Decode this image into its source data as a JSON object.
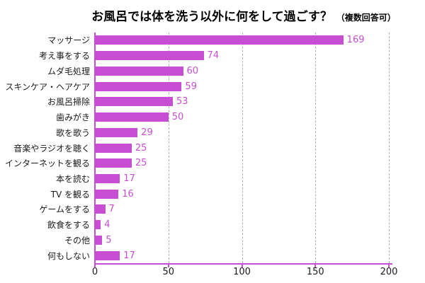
{
  "title": {
    "main": "お風呂では体を洗う以外に何をして過ごす？",
    "note": "（複数回答可）"
  },
  "chart_data": {
    "type": "bar",
    "orientation": "horizontal",
    "title": "お風呂では体を洗う以外に何をして過ごす？（複数回答可）",
    "categories": [
      "マッサージ",
      "考え事をする",
      "ムダ毛処理",
      "スキンケア・ヘアケア",
      "お風呂掃除",
      "歯みがき",
      "歌を歌う",
      "音楽やラジオを聴く",
      "インターネットを観る",
      "本を読む",
      "TV を観る",
      "ゲームをする",
      "飲食をする",
      "その他",
      "何もしない"
    ],
    "values": [
      169,
      74,
      60,
      59,
      53,
      50,
      29,
      25,
      25,
      17,
      16,
      7,
      4,
      5,
      17
    ],
    "xlabel": "",
    "ylabel": "",
    "xlim": [
      0,
      200
    ],
    "x_ticks": [
      0,
      50,
      100,
      150,
      200
    ],
    "grid": "vertical-dashed",
    "legend": "none",
    "colors": {
      "bar": "#c74ed2",
      "value_label": "#c74ed2",
      "axis": "#c74ed2",
      "gridline": "#b3b3b3",
      "category_label": "#1a1a1a",
      "tick_label": "#1a1a1a",
      "title": "#000000"
    }
  }
}
